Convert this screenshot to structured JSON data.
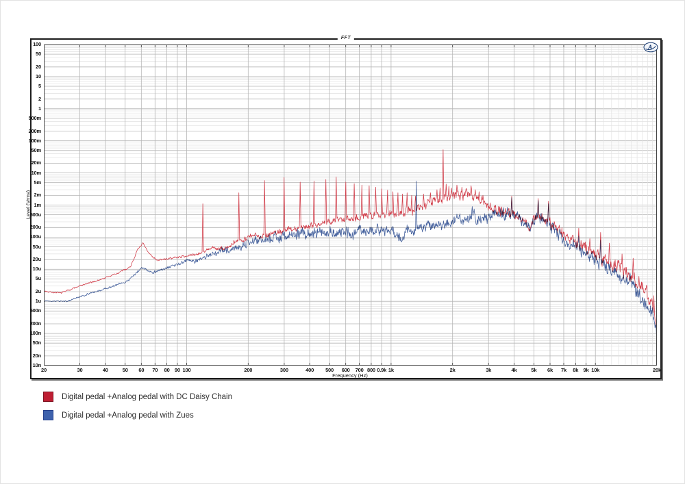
{
  "page": {
    "background": "#ffffff"
  },
  "chart_data": {
    "type": "line",
    "title": "FFT",
    "xlabel": "Frequency (Hz)",
    "ylabel": "Level (Vrms)",
    "x_scale": "log",
    "y_scale": "log",
    "x_range": [
      20,
      20000
    ],
    "y_range": [
      1e-08,
      100
    ],
    "grid": "on",
    "legend_position": "below-left",
    "x_tick_values": [
      20,
      30,
      40,
      50,
      60,
      70,
      80,
      90,
      100,
      200,
      300,
      400,
      500,
      600,
      700,
      800,
      900,
      1000,
      2000,
      3000,
      4000,
      5000,
      6000,
      7000,
      8000,
      9000,
      10000,
      20000
    ],
    "x_tick_labels": [
      "20",
      "30",
      "40",
      "50",
      "60",
      "70",
      "80",
      "90",
      "100",
      "200",
      "300",
      "400",
      "500",
      "600",
      "700",
      "800",
      "0.9k",
      "1k",
      "2k",
      "3k",
      "4k",
      "5k",
      "6k",
      "7k",
      "8k",
      "9k",
      "10k",
      "20k"
    ],
    "x_minor_values": [
      11000,
      12000,
      13000,
      14000,
      15000,
      16000,
      17000,
      18000,
      19000
    ],
    "y_tick_values": [
      100,
      50,
      20,
      10,
      5,
      2,
      1,
      0.5,
      0.2,
      0.1,
      0.05,
      0.02,
      0.01,
      0.005,
      0.002,
      0.001,
      0.0005,
      0.0002,
      0.0001,
      5e-05,
      2e-05,
      1e-05,
      5e-06,
      2e-06,
      1e-06,
      5e-07,
      2e-07,
      1e-07,
      5e-08,
      2e-08,
      1e-08
    ],
    "y_tick_labels": [
      "100",
      "50",
      "20",
      "10",
      "5",
      "2",
      "1",
      "500m",
      "200m",
      "100m",
      "50m",
      "20m",
      "10m",
      "5m",
      "2m",
      "1m",
      "500u",
      "200u",
      "100u",
      "50u",
      "20u",
      "10u",
      "5u",
      "2u",
      "1u",
      "500n",
      "200n",
      "100n",
      "50n",
      "20n",
      "10n"
    ],
    "colors": {
      "grid_major": "#b5b5b5",
      "grid_minor": "#e2e2e2",
      "plot_border": "#444444",
      "tick": "#333333"
    },
    "series": [
      {
        "name": "Digital pedal +Analog pedal with DC Daisy Chain",
        "color": "#d2414d",
        "legend_color": "#be1e33",
        "legend_border": "#7d1120",
        "seed": 7,
        "envelope": [
          [
            20,
            2.1e-06
          ],
          [
            24,
            1.8e-06
          ],
          [
            30,
            3e-06
          ],
          [
            38,
            4.8e-06
          ],
          [
            46,
            7.5e-06
          ],
          [
            53,
            1.2e-05
          ],
          [
            58,
            4.5e-05
          ],
          [
            61,
            6.5e-05
          ],
          [
            65,
            3.2e-05
          ],
          [
            72,
            1.9e-05
          ],
          [
            80,
            2.1e-05
          ],
          [
            95,
            2.5e-05
          ],
          [
            105,
            2.7e-05
          ],
          [
            120,
            3.4e-05
          ],
          [
            135,
            4.6e-05
          ],
          [
            150,
            4.2e-05
          ],
          [
            165,
            5.5e-05
          ],
          [
            185,
            8.5e-05
          ],
          [
            205,
            0.000105
          ],
          [
            240,
            0.000115
          ],
          [
            280,
            0.000145
          ],
          [
            330,
            0.00018
          ],
          [
            390,
            0.00022
          ],
          [
            460,
            0.00027
          ],
          [
            540,
            0.00033
          ],
          [
            640,
            0.0004
          ],
          [
            760,
            0.00046
          ],
          [
            880,
            0.00052
          ],
          [
            1000,
            0.00056
          ],
          [
            1150,
            0.00062
          ],
          [
            1300,
            0.00072
          ],
          [
            1500,
            0.00105
          ],
          [
            1700,
            0.0015
          ],
          [
            1900,
            0.0016
          ],
          [
            2100,
            0.0019
          ],
          [
            2350,
            0.0023
          ],
          [
            2550,
            0.002
          ],
          [
            2750,
            0.0014
          ],
          [
            3000,
            0.00095
          ],
          [
            3300,
            0.0007
          ],
          [
            3700,
            0.0006
          ],
          [
            4100,
            0.0005
          ],
          [
            4400,
            0.00036
          ],
          [
            4700,
            0.00021
          ],
          [
            5000,
            0.00034
          ],
          [
            5300,
            0.00046
          ],
          [
            5700,
            0.00036
          ],
          [
            6100,
            0.00024
          ],
          [
            6500,
            0.00017
          ],
          [
            7000,
            0.00012
          ],
          [
            7600,
            8.5e-05
          ],
          [
            8200,
            6e-05
          ],
          [
            9000,
            4.5e-05
          ],
          [
            9800,
            3.4e-05
          ],
          [
            10800,
            2.4e-05
          ],
          [
            11800,
            1.6e-05
          ],
          [
            12800,
            1.1e-05
          ],
          [
            14000,
            8.5e-06
          ],
          [
            15200,
            6.5e-06
          ],
          [
            16200,
            3.8e-06
          ],
          [
            17200,
            2.3e-06
          ],
          [
            18200,
            1.3e-06
          ],
          [
            19000,
            7e-07
          ],
          [
            19600,
            3.5e-07
          ],
          [
            20000,
            1.8e-07
          ]
        ],
        "spikes": [
          [
            120,
            0.0011
          ],
          [
            180,
            0.0024
          ],
          [
            240,
            0.0058
          ],
          [
            300,
            0.0072
          ],
          [
            360,
            0.0052
          ],
          [
            420,
            0.0056
          ],
          [
            480,
            0.0062
          ],
          [
            540,
            0.0075
          ],
          [
            600,
            0.0052
          ],
          [
            660,
            0.0046
          ],
          [
            720,
            0.0042
          ],
          [
            780,
            0.004
          ],
          [
            840,
            0.0036
          ],
          [
            900,
            0.0032
          ],
          [
            960,
            0.0029
          ],
          [
            1020,
            0.0026
          ],
          [
            1080,
            0.0024
          ],
          [
            1140,
            0.0022
          ],
          [
            1200,
            0.0024
          ],
          [
            1260,
            0.002
          ],
          [
            1320,
            0.0019
          ],
          [
            1440,
            0.0022
          ],
          [
            1560,
            0.0024
          ],
          [
            1680,
            0.003
          ],
          [
            1740,
            0.0034
          ],
          [
            1800,
            0.053
          ],
          [
            1860,
            0.0045
          ],
          [
            1920,
            0.0038
          ],
          [
            1980,
            0.0034
          ],
          [
            2100,
            0.0042
          ],
          [
            2220,
            0.0036
          ],
          [
            2340,
            0.0032
          ],
          [
            2460,
            0.004
          ],
          [
            2580,
            0.003
          ],
          [
            2700,
            0.0026
          ],
          [
            2820,
            0.002
          ],
          [
            3900,
            0.0019
          ],
          [
            5250,
            0.0016
          ],
          [
            5900,
            0.0013
          ],
          [
            8300,
            0.00019
          ],
          [
            9400,
            9e-05
          ],
          [
            10600,
            0.00014
          ],
          [
            11700,
            6.5e-05
          ],
          [
            13500,
            3e-05
          ],
          [
            15300,
            2.2e-05
          ],
          [
            17800,
            3.2e-06
          ],
          [
            19300,
            1.5e-06
          ]
        ],
        "noise": [
          [
            20,
            0.015
          ],
          [
            90,
            0.02
          ],
          [
            150,
            0.05
          ],
          [
            300,
            0.07
          ],
          [
            700,
            0.08
          ],
          [
            1200,
            0.09
          ],
          [
            2500,
            0.1
          ],
          [
            4000,
            0.12
          ],
          [
            8000,
            0.13
          ],
          [
            20000,
            0.16
          ]
        ]
      },
      {
        "name": "Digital pedal +Analog pedal with Zues",
        "color": "#47639f",
        "legend_color": "#3e62ad",
        "legend_border": "#25408c",
        "seed": 13,
        "envelope": [
          [
            20,
            1.05e-06
          ],
          [
            26,
            1e-06
          ],
          [
            33,
            1.7e-06
          ],
          [
            42,
            2.7e-06
          ],
          [
            52,
            4.5e-06
          ],
          [
            60,
            1.1e-05
          ],
          [
            68,
            8e-06
          ],
          [
            78,
            1e-05
          ],
          [
            90,
            1.4e-05
          ],
          [
            100,
            1.9e-05
          ],
          [
            112,
            1.7e-05
          ],
          [
            128,
            2.8e-05
          ],
          [
            145,
            3.4e-05
          ],
          [
            165,
            4.4e-05
          ],
          [
            185,
            5.2e-05
          ],
          [
            210,
            7.5e-05
          ],
          [
            240,
            9e-05
          ],
          [
            280,
            0.000105
          ],
          [
            330,
            0.000115
          ],
          [
            400,
            0.00013
          ],
          [
            480,
            0.00014
          ],
          [
            560,
            0.00015
          ],
          [
            660,
            0.000145
          ],
          [
            780,
            0.000155
          ],
          [
            900,
            0.00016
          ],
          [
            1000,
            0.000135
          ],
          [
            1080,
            0.000105
          ],
          [
            1200,
            0.000135
          ],
          [
            1400,
            0.00018
          ],
          [
            1600,
            0.00022
          ],
          [
            1800,
            0.00026
          ],
          [
            2000,
            0.0003
          ],
          [
            2250,
            0.00036
          ],
          [
            2500,
            0.00044
          ],
          [
            2700,
            0.00036
          ],
          [
            2950,
            0.00044
          ],
          [
            3300,
            0.00054
          ],
          [
            3700,
            0.00056
          ],
          [
            4100,
            0.00047
          ],
          [
            4400,
            0.00033
          ],
          [
            4700,
            0.000195
          ],
          [
            5000,
            0.00032
          ],
          [
            5300,
            0.00043
          ],
          [
            5700,
            0.00033
          ],
          [
            6100,
            0.00021
          ],
          [
            6500,
            0.00014
          ],
          [
            7000,
            9e-05
          ],
          [
            7600,
            6e-05
          ],
          [
            8200,
            4.2e-05
          ],
          [
            9000,
            3e-05
          ],
          [
            9800,
            2.2e-05
          ],
          [
            10800,
            1.5e-05
          ],
          [
            11800,
            9.5e-06
          ],
          [
            12800,
            6.2e-06
          ],
          [
            14000,
            4.5e-06
          ],
          [
            15200,
            3.4e-06
          ],
          [
            16200,
            1.9e-06
          ],
          [
            17200,
            1.1e-06
          ],
          [
            18200,
            6e-07
          ],
          [
            19000,
            3.2e-07
          ],
          [
            19600,
            1.5e-07
          ],
          [
            20000,
            8e-08
          ]
        ],
        "spikes": [
          [
            1330,
            0.0056
          ],
          [
            2500,
            0.0009
          ],
          [
            3900,
            0.0017
          ],
          [
            5250,
            0.0014
          ],
          [
            5900,
            0.0011
          ],
          [
            8300,
            0.00011
          ],
          [
            10600,
            8e-05
          ]
        ],
        "noise": [
          [
            20,
            0.01
          ],
          [
            80,
            0.03
          ],
          [
            150,
            0.07
          ],
          [
            300,
            0.11
          ],
          [
            700,
            0.12
          ],
          [
            1500,
            0.12
          ],
          [
            3000,
            0.12
          ],
          [
            6000,
            0.13
          ],
          [
            10000,
            0.14
          ],
          [
            20000,
            0.17
          ]
        ]
      }
    ]
  },
  "logo": {
    "name": "Audio Precision logo",
    "letter": "A",
    "color": "#16386e"
  },
  "legend": {
    "items": [
      {
        "label": "Digital pedal +Analog pedal with DC Daisy Chain"
      },
      {
        "label": "Digital pedal +Analog pedal with Zues"
      }
    ]
  }
}
